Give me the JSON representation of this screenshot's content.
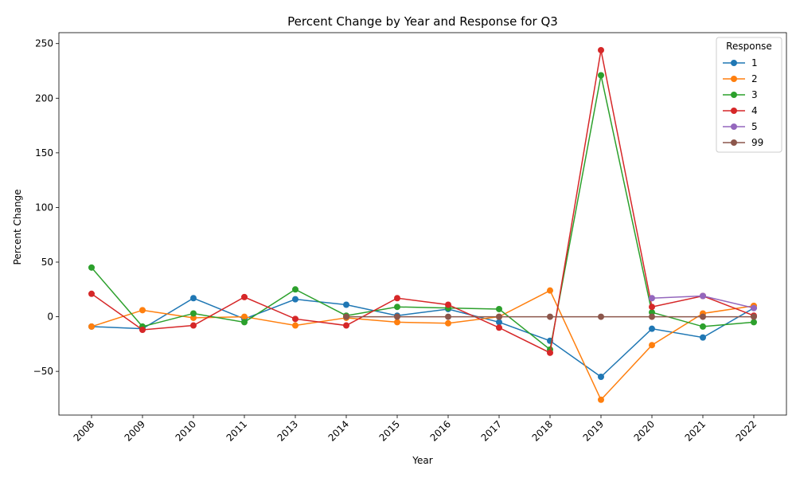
{
  "chart_data": {
    "type": "line",
    "title": "Percent Change by Year and Response for Q3",
    "xlabel": "Year",
    "ylabel": "Percent Change",
    "categories": [
      "2008",
      "2009",
      "2010",
      "2011",
      "2013",
      "2014",
      "2015",
      "2016",
      "2017",
      "2018",
      "2019",
      "2020",
      "2021",
      "2022"
    ],
    "ylim": [
      -90,
      260
    ],
    "yticks": [
      -50,
      0,
      50,
      100,
      150,
      200,
      250
    ],
    "grid": false,
    "legend": {
      "title": "Response",
      "position": "top-right"
    },
    "series": [
      {
        "name": "1",
        "color": "#1f77b4",
        "values": [
          -9,
          -11,
          17,
          -2,
          16,
          11,
          1,
          7,
          -5,
          -22,
          -55,
          -11,
          -19,
          8
        ]
      },
      {
        "name": "2",
        "color": "#ff7f0e",
        "values": [
          -9,
          6,
          -1,
          0,
          -8,
          -1,
          -5,
          -6,
          0,
          24,
          -76,
          -26,
          3,
          10
        ]
      },
      {
        "name": "3",
        "color": "#2ca02c",
        "values": [
          45,
          -9,
          3,
          -5,
          25,
          1,
          9,
          8,
          7,
          -30,
          221,
          4,
          -9,
          -5
        ]
      },
      {
        "name": "4",
        "color": "#d62728",
        "values": [
          21,
          -12,
          -8,
          18,
          -2,
          -8,
          17,
          11,
          -10,
          -33,
          244,
          9,
          19,
          1
        ]
      },
      {
        "name": "5",
        "color": "#9467bd",
        "values": [
          null,
          null,
          null,
          null,
          null,
          null,
          null,
          null,
          null,
          null,
          null,
          17,
          19,
          8
        ]
      },
      {
        "name": "99",
        "color": "#8c564b",
        "values": [
          null,
          null,
          null,
          null,
          null,
          0,
          0,
          0,
          0,
          0,
          0,
          0,
          0,
          0
        ]
      }
    ]
  }
}
